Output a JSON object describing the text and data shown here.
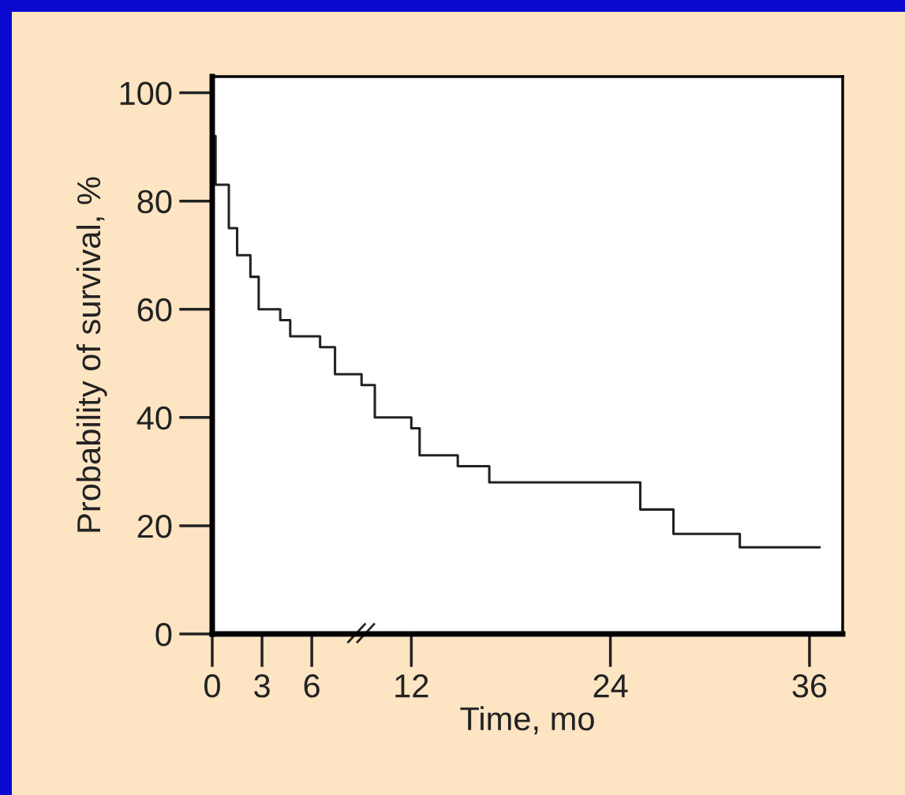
{
  "chart_data": {
    "type": "step",
    "xlabel": "Time, mo",
    "ylabel": "Probability of survival, %",
    "x": [
      0,
      0.2,
      1.0,
      1.5,
      2.3,
      2.8,
      4.1,
      4.7,
      6.5,
      7.4,
      9.0,
      9.8,
      12.0,
      12.5,
      14.8,
      16.7,
      25.8,
      27.8,
      31.8,
      36.6
    ],
    "series": [
      {
        "color": "#222222",
        "values": [
          92,
          83,
          75,
          70,
          66,
          60,
          58,
          55,
          53,
          48,
          46,
          40,
          38,
          33,
          31,
          28,
          23,
          18.5,
          16,
          16
        ]
      }
    ],
    "xlim": [
      0,
      38
    ],
    "xticks": [
      0,
      3,
      6,
      12,
      24,
      36
    ],
    "ylim": [
      0,
      103
    ],
    "yticks": [
      0,
      20,
      40,
      60,
      80,
      100
    ],
    "grid": false,
    "legend": false,
    "marker": "none",
    "line_style": "solid"
  }
}
